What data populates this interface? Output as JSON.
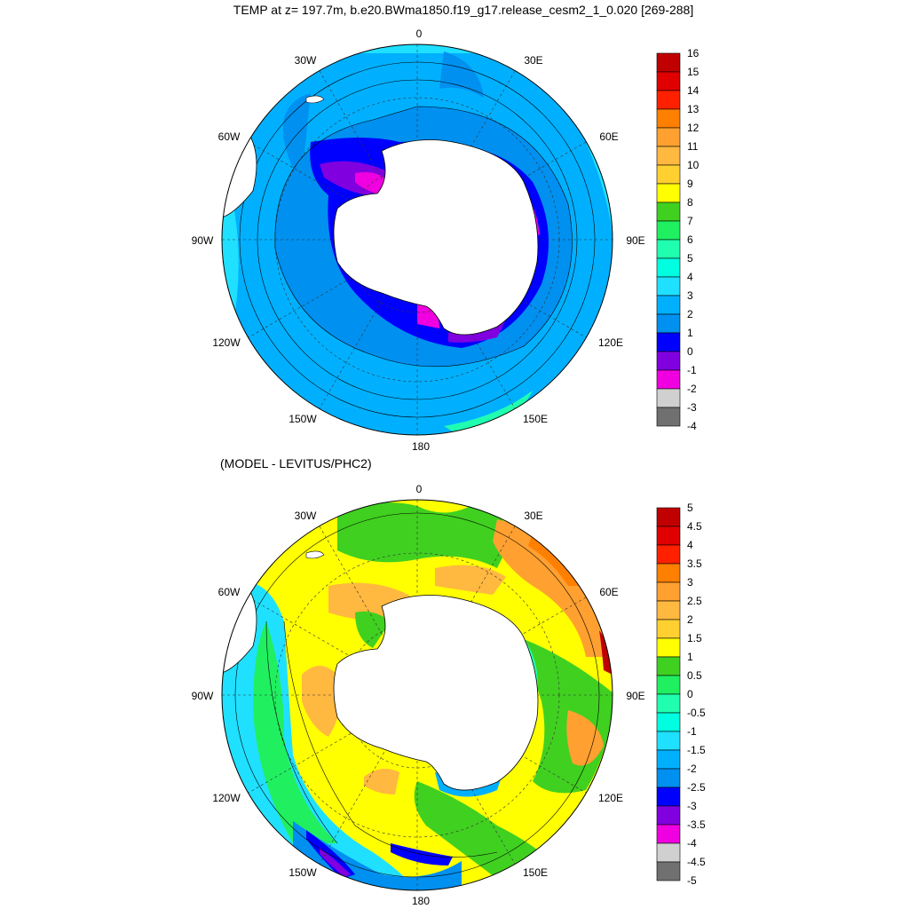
{
  "top_panel": {
    "title": "TEMP at z= 197.7m, b.e20.BWma1850.f19_g17.release_cesm2_1_0.020 [269-288]",
    "longitude_labels": [
      "0",
      "30E",
      "60E",
      "90E",
      "120E",
      "150E",
      "180",
      "150W",
      "120W",
      "90W",
      "60W",
      "30W"
    ],
    "colorbar": {
      "labels": [
        "16",
        "15",
        "14",
        "13",
        "12",
        "11",
        "10",
        "9",
        "8",
        "7",
        "6",
        "5",
        "4",
        "3",
        "2",
        "1",
        "0",
        "-1",
        "-2",
        "-3",
        "-4"
      ],
      "colors": [
        "#c00000",
        "#e00000",
        "#ff2000",
        "#ff8000",
        "#ffa030",
        "#ffb840",
        "#ffd030",
        "#ffff00",
        "#40d020",
        "#20f060",
        "#20ffb0",
        "#00ffe0",
        "#20e0ff",
        "#00b0ff",
        "#0090f0",
        "#0000ff",
        "#8000e0",
        "#f000e0",
        "#d0d0d0",
        "#707070"
      ]
    }
  },
  "bottom_panel": {
    "title": "(MODEL - LEVITUS/PHC2)",
    "longitude_labels": [
      "0",
      "30E",
      "60E",
      "90E",
      "120E",
      "150E",
      "180",
      "150W",
      "120W",
      "90W",
      "60W",
      "30W"
    ],
    "colorbar": {
      "labels": [
        "5",
        "4.5",
        "4",
        "3.5",
        "3",
        "2.5",
        "2",
        "1.5",
        "1",
        "0.5",
        "0",
        "-0.5",
        "-1",
        "-1.5",
        "-2",
        "-2.5",
        "-3",
        "-3.5",
        "-4",
        "-4.5",
        "-5"
      ],
      "colors": [
        "#c00000",
        "#e00000",
        "#ff2000",
        "#ff8000",
        "#ffa030",
        "#ffb840",
        "#ffd030",
        "#ffff00",
        "#40d020",
        "#20f060",
        "#20ffb0",
        "#00ffe0",
        "#20e0ff",
        "#00b0ff",
        "#0090f0",
        "#0000ff",
        "#8000e0",
        "#f000e0",
        "#d0d0d0",
        "#707070"
      ]
    }
  }
}
